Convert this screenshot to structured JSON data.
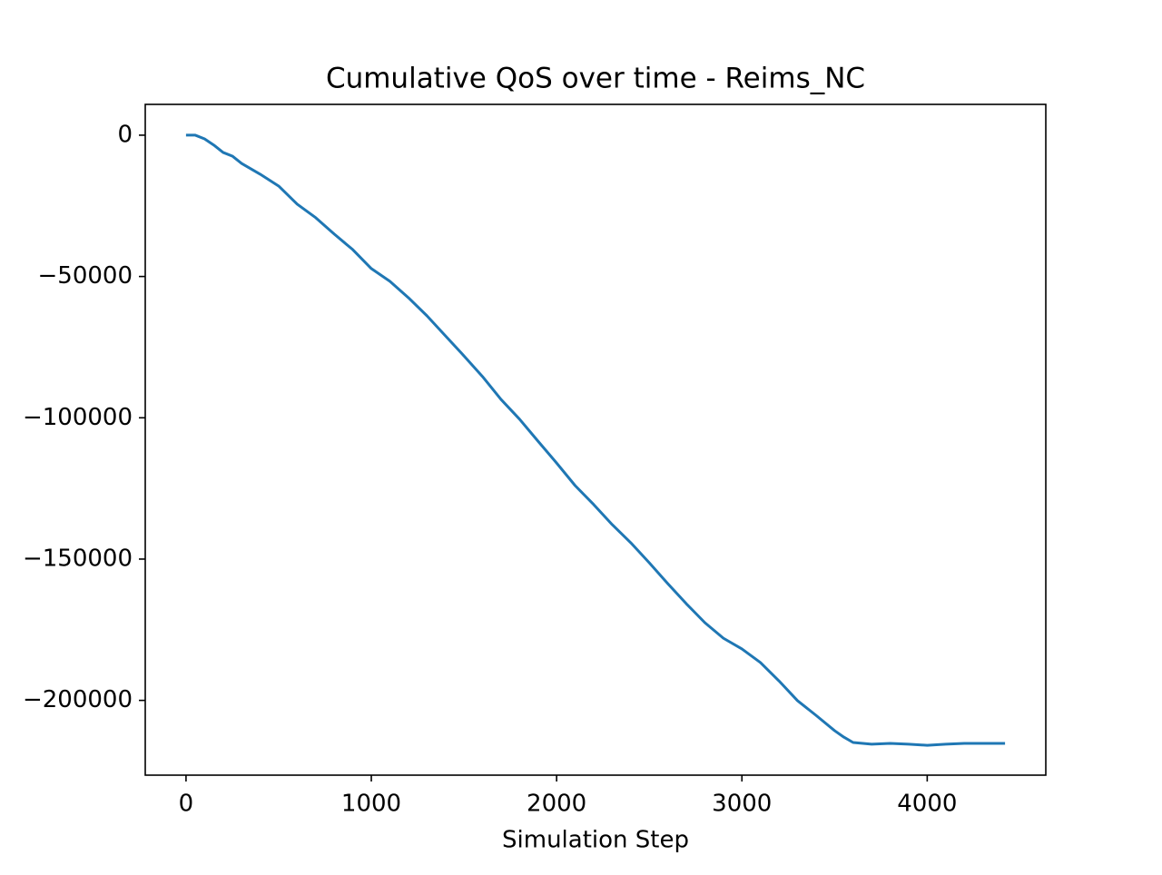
{
  "chart_data": {
    "type": "line",
    "title": "Cumulative QoS over time - Reims_NC",
    "x_label": "Simulation Step",
    "x": [
      0,
      50,
      100,
      150,
      200,
      250,
      300,
      400,
      500,
      600,
      700,
      800,
      900,
      1000,
      1100,
      1200,
      1300,
      1400,
      1500,
      1600,
      1700,
      1800,
      1900,
      2000,
      2100,
      2200,
      2300,
      2400,
      2500,
      2600,
      2700,
      2800,
      2900,
      3000,
      3100,
      3200,
      3300,
      3400,
      3500,
      3550,
      3600,
      3700,
      3800,
      3900,
      4000,
      4100,
      4200,
      4300,
      4420
    ],
    "series": [
      {
        "name": "Cumulative QoS",
        "color": "#1f77b4",
        "values": [
          0,
          0,
          -1300,
          -3500,
          -6100,
          -7400,
          -10000,
          -13800,
          -18000,
          -24400,
          -29200,
          -35000,
          -40500,
          -47200,
          -51700,
          -57500,
          -63900,
          -71000,
          -78100,
          -85400,
          -93500,
          -100500,
          -108300,
          -116000,
          -124000,
          -130700,
          -137800,
          -144200,
          -151300,
          -158700,
          -165800,
          -172500,
          -178000,
          -181800,
          -186600,
          -193100,
          -200100,
          -205300,
          -210700,
          -213000,
          -214900,
          -215500,
          -215200,
          -215500,
          -215900,
          -215500,
          -215200,
          -215200,
          -215200
        ]
      }
    ],
    "xlim": [
      -220,
      4640
    ],
    "ylim": [
      -226460,
      10900
    ],
    "xticks": [
      0,
      1000,
      2000,
      3000,
      4000
    ],
    "yticks": [
      0,
      {
        "value": -50000,
        "label": "−50000"
      },
      {
        "value": -100000,
        "label": "−100000"
      },
      {
        "value": -150000,
        "label": "−150000"
      },
      {
        "value": -200000,
        "label": "−200000"
      }
    ]
  }
}
